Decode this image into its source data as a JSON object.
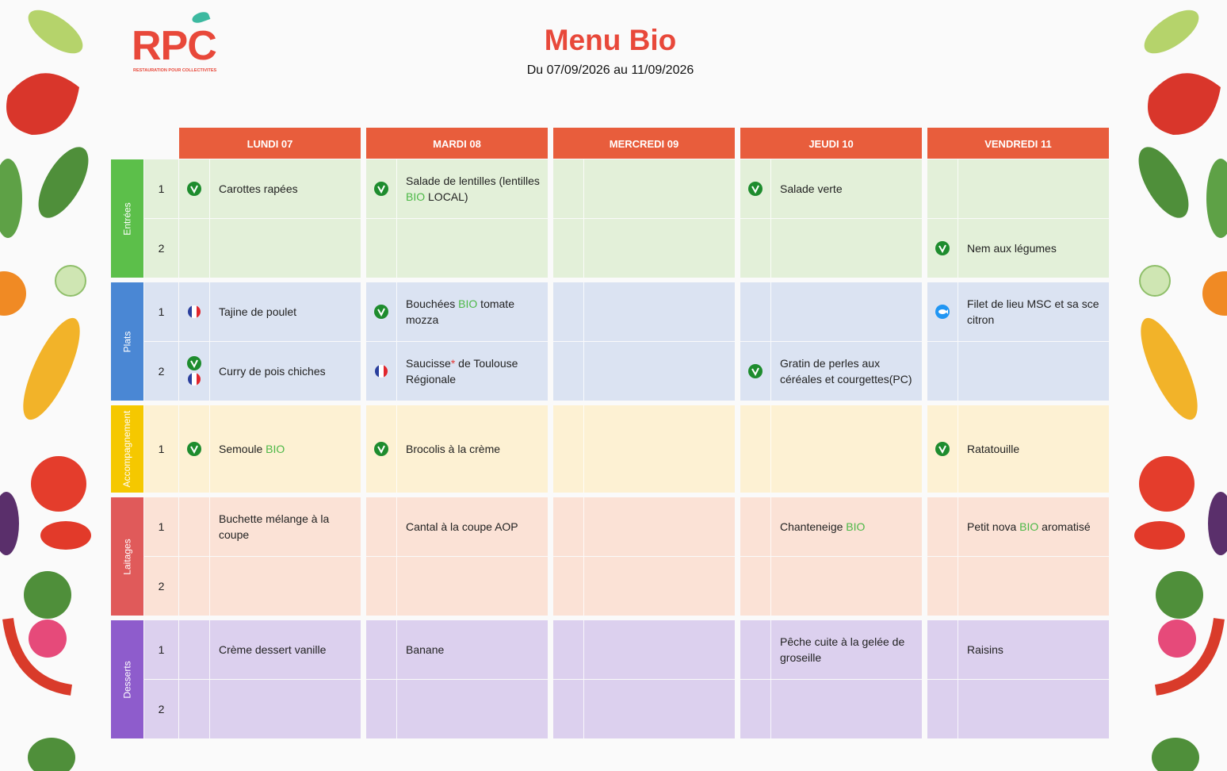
{
  "header": {
    "logo": "RPC",
    "logo_tagline": "RESTAURATION POUR COLLECTIVITES",
    "title": "Menu Bio",
    "subtitle": "Du 07/09/2026 au 11/09/2026"
  },
  "days": [
    "LUNDI 07",
    "MARDI 08",
    "MERCREDI 09",
    "JEUDI 10",
    "VENDREDI 11"
  ],
  "day_color": "#e85d3c",
  "sections": [
    {
      "name": "Entrées",
      "color": "#5cbf4a",
      "bg": "#e3f0d9",
      "rows": [
        {
          "num": "1",
          "cells": [
            {
              "icons": [
                "veg"
              ],
              "parts": [
                "Carottes rapées"
              ]
            },
            {
              "icons": [
                "veg"
              ],
              "parts": [
                "Salade de lentilles (lentilles ",
                {
                  "text": "BIO",
                  "color": "#4cb847"
                },
                " LOCAL)"
              ]
            },
            null,
            {
              "icons": [
                "veg"
              ],
              "parts": [
                "Salade verte"
              ]
            },
            null
          ]
        },
        {
          "num": "2",
          "cells": [
            null,
            null,
            null,
            null,
            {
              "icons": [
                "veg"
              ],
              "parts": [
                "Nem aux légumes"
              ]
            }
          ]
        }
      ]
    },
    {
      "name": "Plats",
      "color": "#4a87d4",
      "bg": "#dbe3f2",
      "rows": [
        {
          "num": "1",
          "cells": [
            {
              "icons": [
                "fr"
              ],
              "parts": [
                "Tajine de poulet"
              ]
            },
            {
              "icons": [
                "veg"
              ],
              "parts": [
                "Bouchées ",
                {
                  "text": "BIO",
                  "color": "#4cb847"
                },
                " tomate mozza"
              ]
            },
            null,
            null,
            {
              "icons": [
                "fish"
              ],
              "parts": [
                "Filet de lieu MSC et sa sce citron"
              ]
            }
          ]
        },
        {
          "num": "2",
          "cells": [
            {
              "icons": [
                "veg",
                "fr"
              ],
              "parts": [
                "Curry de pois chiches"
              ]
            },
            {
              "icons": [
                "fr"
              ],
              "parts": [
                "Saucisse",
                {
                  "text": "*",
                  "color": "#e53935"
                },
                " de Toulouse Régionale"
              ]
            },
            null,
            {
              "icons": [
                "veg"
              ],
              "parts": [
                "Gratin de perles aux céréales et courgettes(PC)"
              ]
            },
            null
          ]
        }
      ]
    },
    {
      "name": "Accompagnement",
      "color": "#f5c800",
      "bg": "#fdf1d3",
      "rows": [
        {
          "num": "1",
          "cells": [
            {
              "icons": [
                "veg"
              ],
              "parts": [
                "Semoule ",
                {
                  "text": "BIO",
                  "color": "#4cb847"
                }
              ]
            },
            {
              "icons": [
                "veg"
              ],
              "parts": [
                "Brocolis à la crème"
              ]
            },
            null,
            null,
            {
              "icons": [
                "veg"
              ],
              "parts": [
                "Ratatouille"
              ]
            }
          ]
        }
      ]
    },
    {
      "name": "Laitages",
      "color": "#e05a5a",
      "bg": "#fbe2d6",
      "rows": [
        {
          "num": "1",
          "cells": [
            {
              "parts": [
                "Buchette mélange à la coupe"
              ]
            },
            {
              "parts": [
                "Cantal à la coupe AOP"
              ]
            },
            null,
            {
              "parts": [
                "Chanteneige ",
                {
                  "text": "BIO",
                  "color": "#4cb847"
                }
              ]
            },
            {
              "parts": [
                "Petit nova ",
                {
                  "text": "BIO",
                  "color": "#4cb847"
                },
                " aromatisé"
              ]
            }
          ]
        },
        {
          "num": "2",
          "cells": [
            null,
            null,
            null,
            null,
            null
          ]
        }
      ]
    },
    {
      "name": "Desserts",
      "color": "#8e5ccc",
      "bg": "#dcd0ee",
      "rows": [
        {
          "num": "1",
          "cells": [
            {
              "parts": [
                "Crème dessert vanille"
              ]
            },
            {
              "parts": [
                "Banane"
              ]
            },
            null,
            {
              "parts": [
                "Pêche cuite à la gelée de groseille"
              ]
            },
            {
              "parts": [
                "Raisins"
              ]
            }
          ]
        },
        {
          "num": "2",
          "cells": [
            null,
            null,
            null,
            null,
            null
          ]
        }
      ]
    }
  ]
}
